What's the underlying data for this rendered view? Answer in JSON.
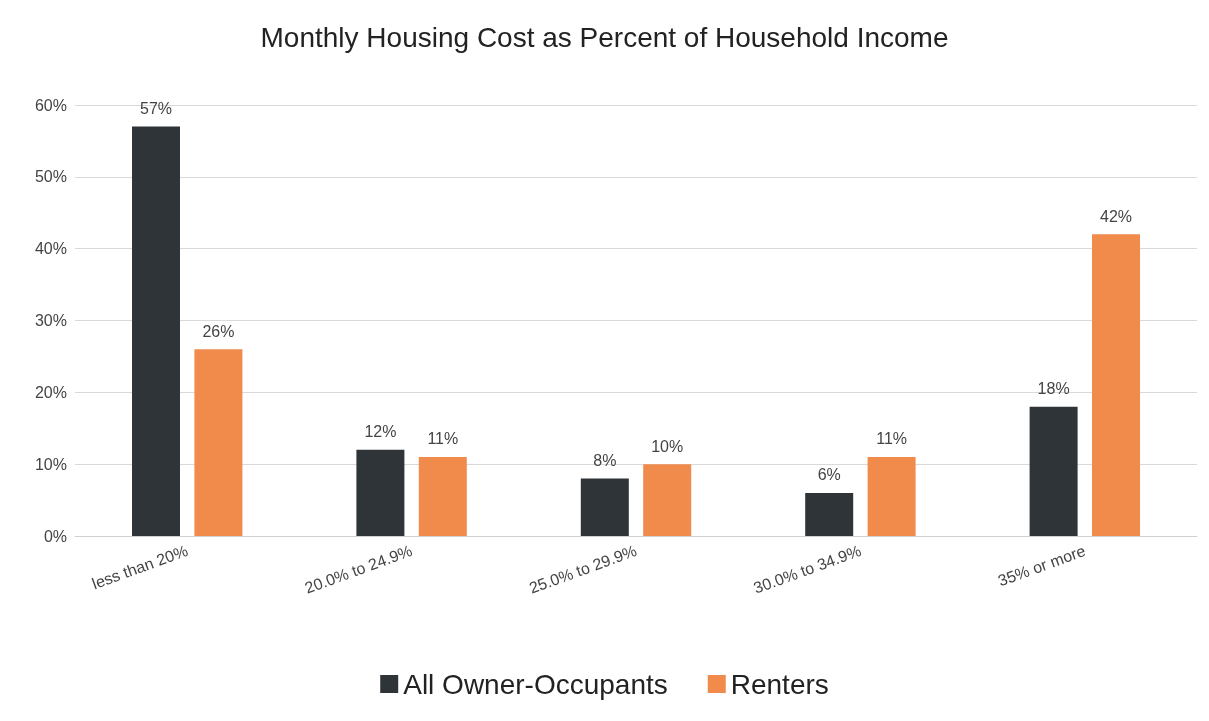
{
  "chart_data": {
    "type": "bar",
    "title": "Monthly Housing Cost as Percent of Household Income",
    "categories": [
      "less than 20%",
      "20.0% to 24.9%",
      "25.0% to 29.9%",
      "30.0% to 34.9%",
      "35% or more"
    ],
    "series": [
      {
        "name": "All Owner-Occupants",
        "color": "#2f3439",
        "values": [
          57,
          12,
          8,
          6,
          18
        ],
        "value_labels": [
          "57%",
          "12%",
          "8%",
          "6%",
          "18%"
        ]
      },
      {
        "name": "Renters",
        "color": "#f08b4c",
        "values": [
          26,
          11,
          10,
          11,
          42
        ],
        "value_labels": [
          "26%",
          "11%",
          "10%",
          "11%",
          "42%"
        ]
      }
    ],
    "ylim": [
      0,
      60
    ],
    "yticks": [
      {
        "value": 0,
        "label": "0%"
      },
      {
        "value": 10,
        "label": "10%"
      },
      {
        "value": 20,
        "label": "20%"
      },
      {
        "value": 30,
        "label": "30%"
      },
      {
        "value": 40,
        "label": "40%"
      },
      {
        "value": 50,
        "label": "50%"
      },
      {
        "value": 60,
        "label": "60%"
      }
    ],
    "grid": "y",
    "legend": "bottom"
  }
}
